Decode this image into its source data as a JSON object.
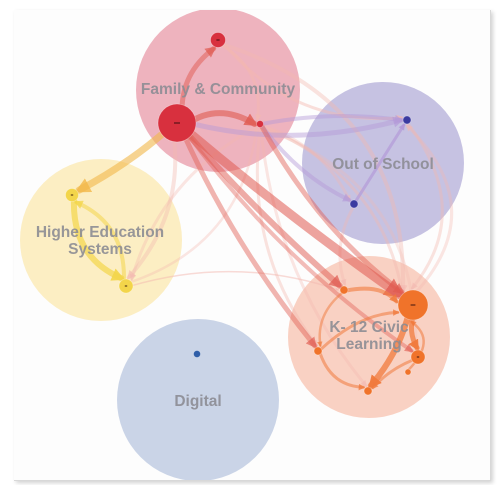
{
  "diagram": {
    "clusters": [
      {
        "id": "family",
        "label_lines": [
          "Family & Community"
        ],
        "color": "#e06a80"
      },
      {
        "id": "outofschool",
        "label_lines": [
          "Out of School"
        ],
        "color": "#8f88c8"
      },
      {
        "id": "higher",
        "label_lines": [
          "Higher Education",
          "Systems"
        ],
        "color": "#fbe08a"
      },
      {
        "id": "k12",
        "label_lines": [
          "K- 12 Civic",
          "Learning"
        ],
        "color": "#f6a58a"
      },
      {
        "id": "digital",
        "label_lines": [
          "Digital"
        ],
        "color": "#98acd2"
      }
    ],
    "node_colors": {
      "family": "#d8303e",
      "outofschool": "#3b3aa0",
      "higher": "#f3d54a",
      "k12": "#f0732a",
      "digital": "#2f5ea8"
    },
    "link_colors": {
      "family_to_k12": "#e05a50",
      "family_to_higher": "#f2b84a",
      "family_to_outofschool": "#b49ad8",
      "faint": "#f3b8b0",
      "k12_internal": "#f07a3c",
      "higher_internal": "#f3d54a"
    }
  }
}
